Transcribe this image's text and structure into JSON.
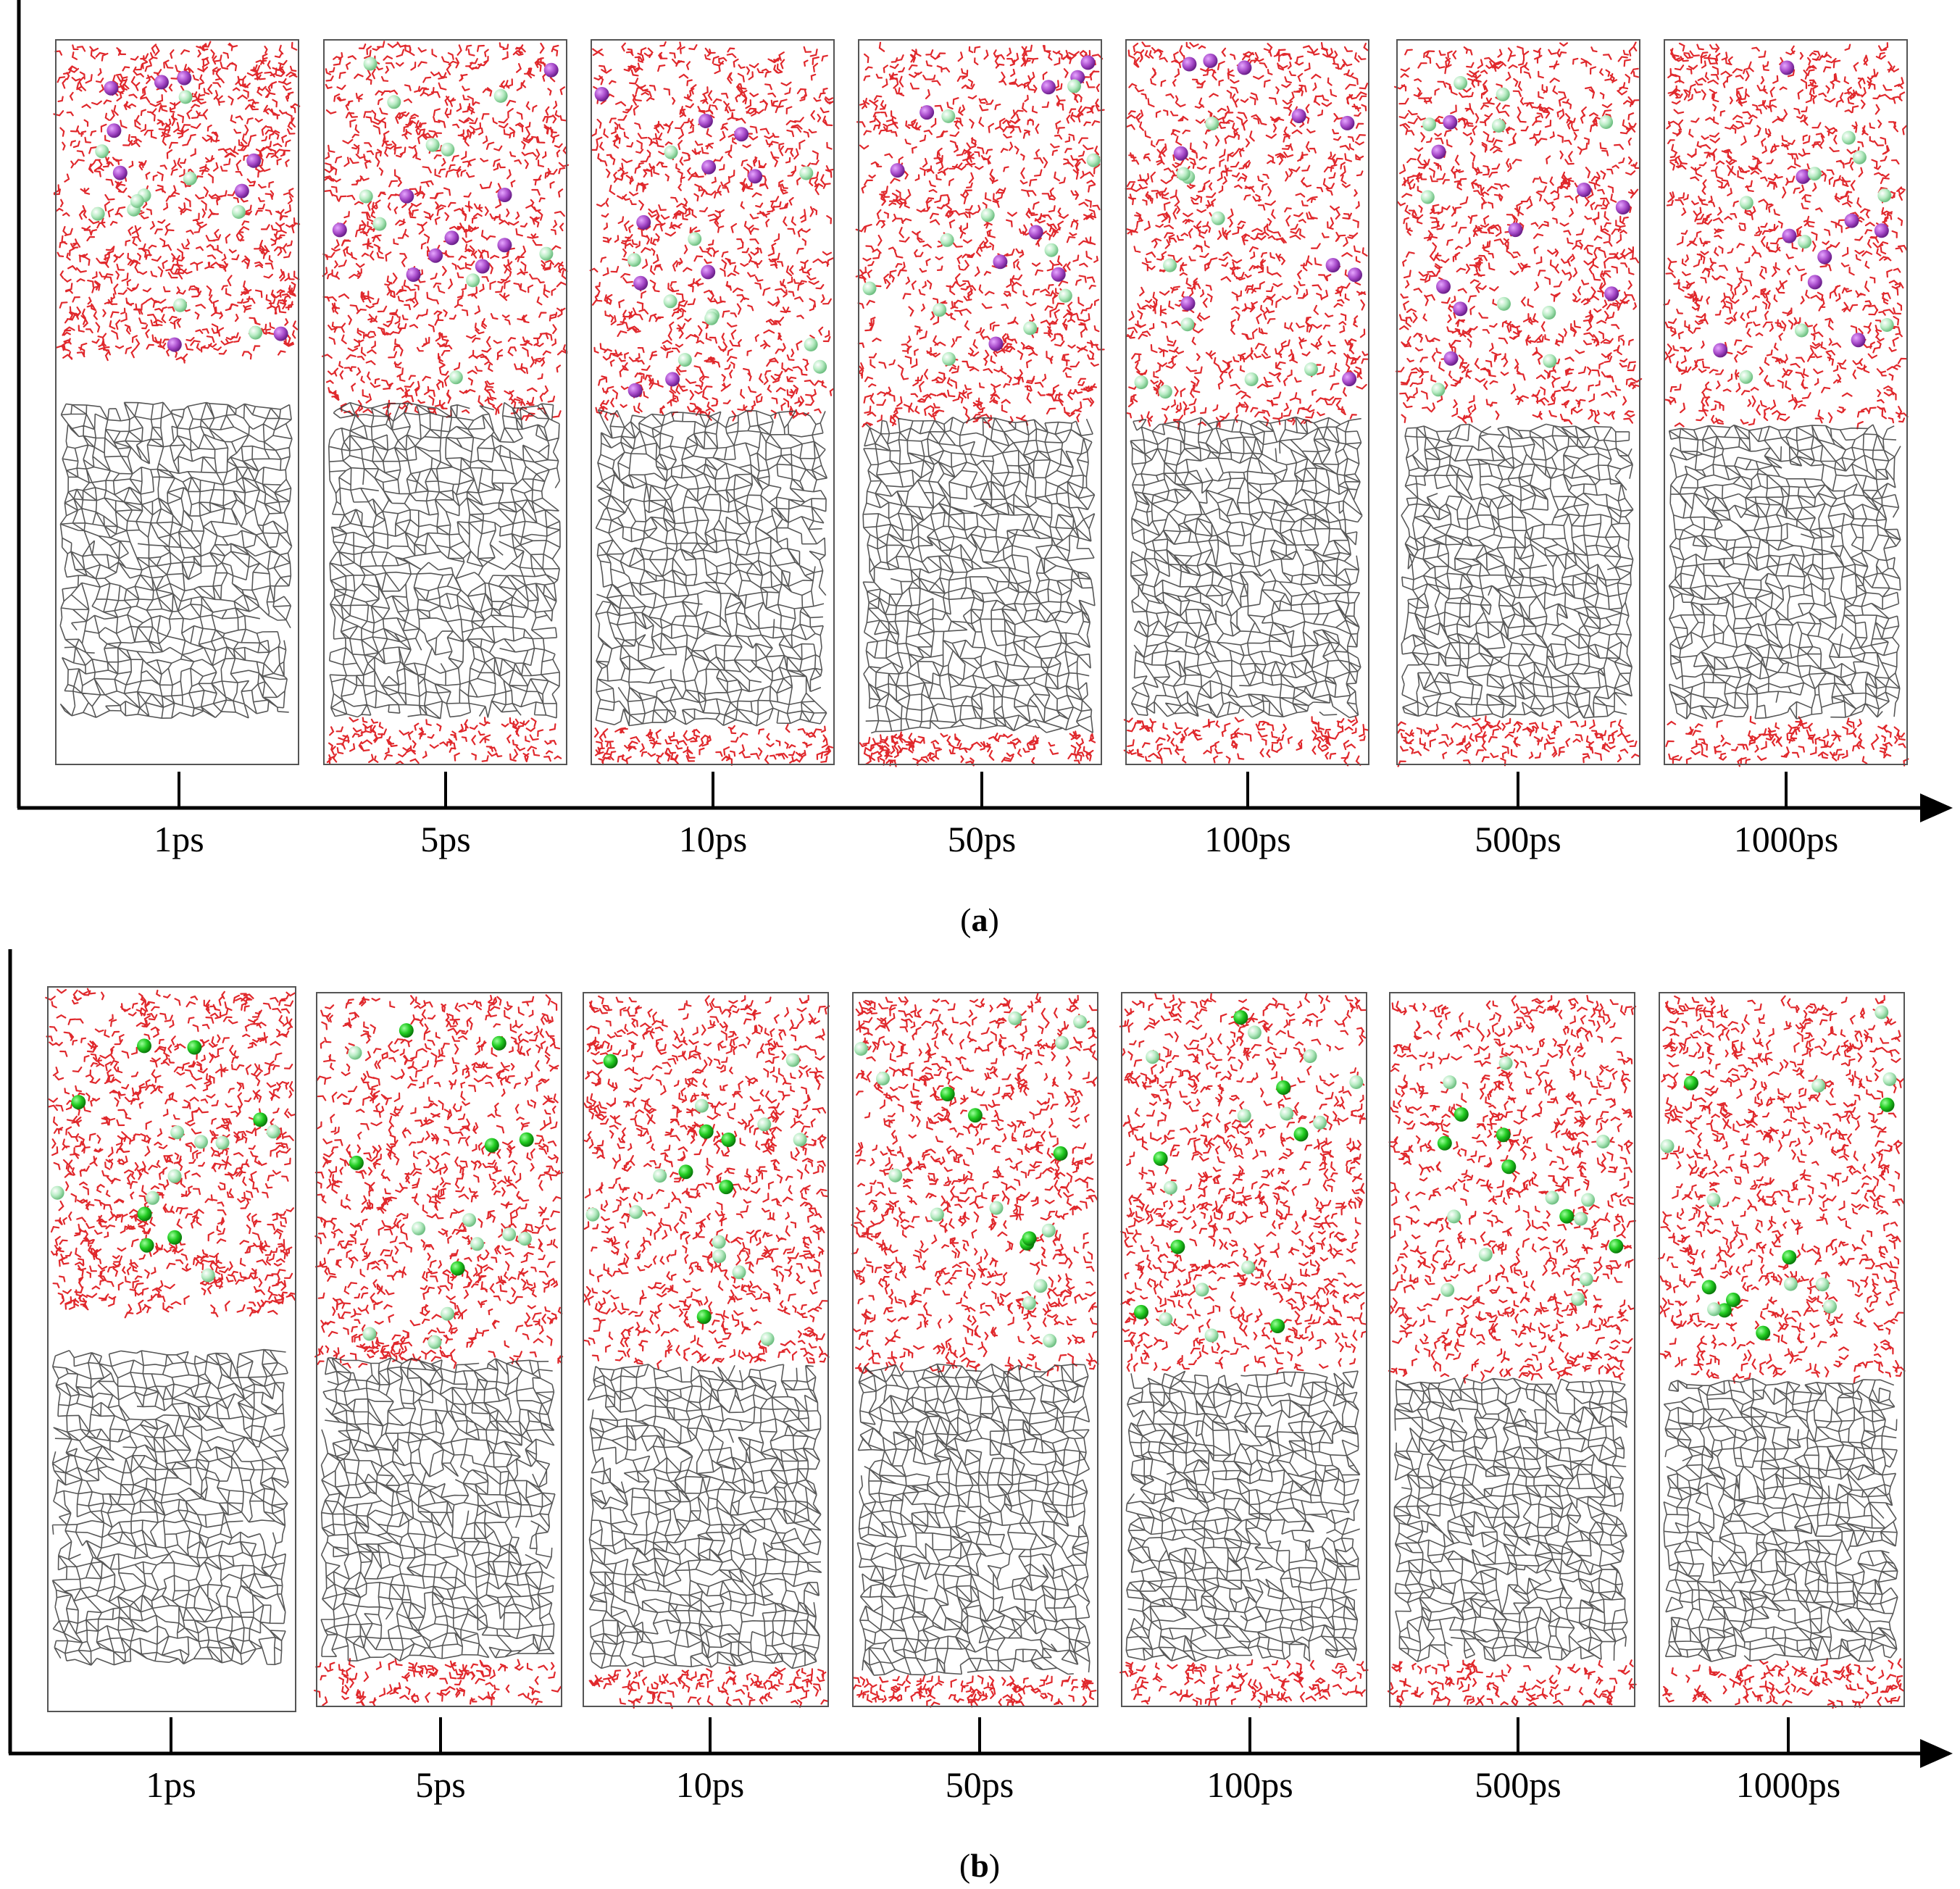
{
  "figure": {
    "panels": [
      {
        "id": "a",
        "caption_letter": "a",
        "time_labels": [
          "1ps",
          "5ps",
          "10ps",
          "50ps",
          "100ps",
          "500ps",
          "1000ps"
        ],
        "ion_colors": [
          "#a64ac9",
          "#b8ecc4"
        ]
      },
      {
        "id": "b",
        "caption_letter": "b",
        "time_labels": [
          "1ps",
          "5ps",
          "10ps",
          "50ps",
          "100ps",
          "500ps",
          "1000ps"
        ],
        "ion_colors": [
          "#22cc22",
          "#b8ecc4"
        ]
      }
    ],
    "colors": {
      "water": "#e0282c",
      "polymer": "#3a3a3a",
      "box_border": "#555555",
      "axis": "#000000"
    }
  }
}
